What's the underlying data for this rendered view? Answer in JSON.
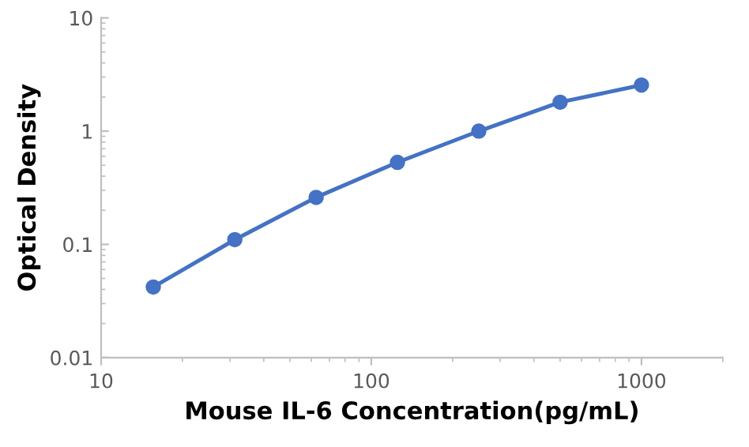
{
  "chart_data": {
    "type": "line",
    "xlabel": "Mouse IL-6 Concentration(pg/mL)",
    "ylabel": "Optical Density",
    "x": [
      15.6,
      31.25,
      62.5,
      125,
      250,
      500,
      1000
    ],
    "series": [
      {
        "color": "#4472c4",
        "values": [
          0.042,
          0.11,
          0.26,
          0.53,
          1.0,
          1.8,
          2.55
        ]
      }
    ],
    "log": "xy",
    "xlim": [
      10,
      2000
    ],
    "ylim": [
      0.01,
      10
    ],
    "xticks": [
      10,
      100,
      1000
    ],
    "yticks": [
      0.01,
      0.1,
      1,
      10
    ],
    "marker": "circle",
    "line_style": "solid",
    "grid": false,
    "legend": false
  }
}
